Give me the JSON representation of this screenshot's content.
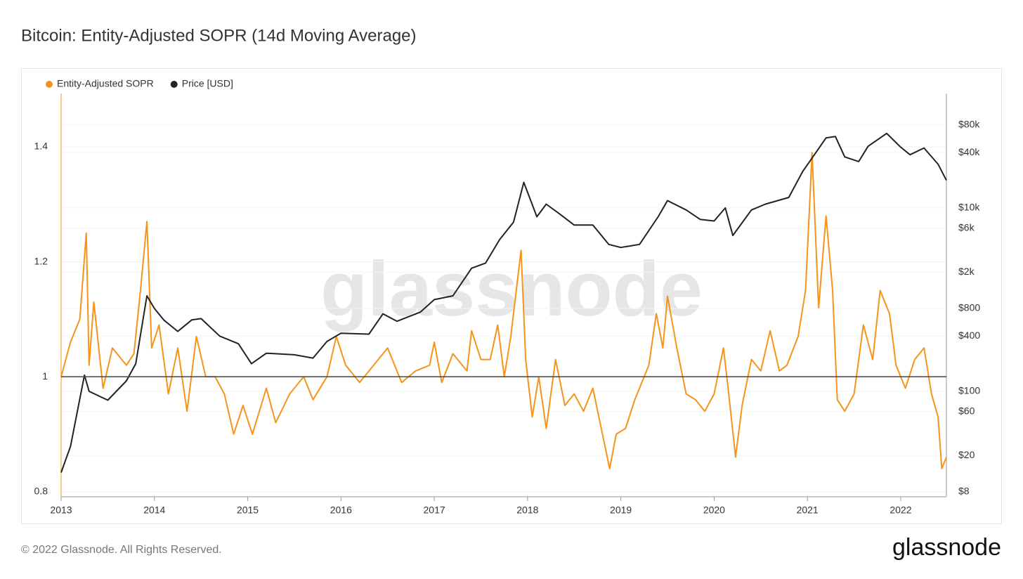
{
  "chart_data": {
    "type": "line",
    "title": "Bitcoin: Entity-Adjusted SOPR (14d Moving Average)",
    "watermark": "glassnode",
    "footer": "© 2022 Glassnode. All Rights Reserved.",
    "logo": "glassnode",
    "xlim": [
      2013,
      2022.49
    ],
    "xticks": [
      2013,
      2014,
      2015,
      2016,
      2017,
      2018,
      2019,
      2020,
      2021,
      2022
    ],
    "ylim": [
      0.791,
      1.493
    ],
    "yticks": [
      0.8,
      1,
      1.2,
      1.4
    ],
    "y2lim": [
      7.07,
      177000
    ],
    "y2scale": "log",
    "y2ticks": [
      {
        "value": 8,
        "label": "$8"
      },
      {
        "value": 20,
        "label": "$20"
      },
      {
        "value": 60,
        "label": "$60"
      },
      {
        "value": 100,
        "label": "$100"
      },
      {
        "value": 400,
        "label": "$400"
      },
      {
        "value": 800,
        "label": "$800"
      },
      {
        "value": 2000,
        "label": "$2k"
      },
      {
        "value": 6000,
        "label": "$6k"
      },
      {
        "value": 10000,
        "label": "$10k"
      },
      {
        "value": 40000,
        "label": "$40k"
      },
      {
        "value": 80000,
        "label": "$80k"
      }
    ],
    "reference_line": 1,
    "grid": true,
    "legend": "top-left",
    "series": [
      {
        "name": "Entity-Adjusted SOPR",
        "color": "#f7931a",
        "x": [
          2013.0,
          2013.1,
          2013.2,
          2013.27,
          2013.3,
          2013.35,
          2013.45,
          2013.55,
          2013.7,
          2013.78,
          2013.85,
          2013.92,
          2013.97,
          2014.05,
          2014.15,
          2014.25,
          2014.35,
          2014.45,
          2014.55,
          2014.65,
          2014.75,
          2014.85,
          2014.95,
          2015.05,
          2015.2,
          2015.3,
          2015.45,
          2015.6,
          2015.7,
          2015.85,
          2015.95,
          2016.05,
          2016.2,
          2016.35,
          2016.5,
          2016.65,
          2016.8,
          2016.95,
          2017.0,
          2017.08,
          2017.2,
          2017.35,
          2017.4,
          2017.5,
          2017.6,
          2017.68,
          2017.75,
          2017.82,
          2017.93,
          2017.98,
          2018.05,
          2018.12,
          2018.2,
          2018.3,
          2018.4,
          2018.5,
          2018.6,
          2018.7,
          2018.88,
          2018.95,
          2019.05,
          2019.15,
          2019.3,
          2019.38,
          2019.45,
          2019.5,
          2019.6,
          2019.7,
          2019.8,
          2019.9,
          2020.0,
          2020.1,
          2020.15,
          2020.23,
          2020.3,
          2020.4,
          2020.5,
          2020.6,
          2020.7,
          2020.78,
          2020.9,
          2020.98,
          2021.05,
          2021.12,
          2021.2,
          2021.27,
          2021.32,
          2021.4,
          2021.5,
          2021.6,
          2021.7,
          2021.78,
          2021.88,
          2021.95,
          2022.05,
          2022.15,
          2022.25,
          2022.33,
          2022.4,
          2022.44,
          2022.49
        ],
        "values": [
          1.0,
          1.06,
          1.1,
          1.25,
          1.02,
          1.13,
          0.98,
          1.05,
          1.02,
          1.04,
          1.15,
          1.27,
          1.05,
          1.09,
          0.97,
          1.05,
          0.94,
          1.07,
          1.0,
          1.0,
          0.97,
          0.9,
          0.95,
          0.9,
          0.98,
          0.92,
          0.97,
          1.0,
          0.96,
          1.0,
          1.07,
          1.02,
          0.99,
          1.02,
          1.05,
          0.99,
          1.01,
          1.02,
          1.06,
          0.99,
          1.04,
          1.01,
          1.08,
          1.03,
          1.03,
          1.09,
          1.0,
          1.07,
          1.22,
          1.03,
          0.93,
          1.0,
          0.91,
          1.03,
          0.95,
          0.97,
          0.94,
          0.98,
          0.84,
          0.9,
          0.91,
          0.96,
          1.02,
          1.11,
          1.05,
          1.14,
          1.05,
          0.97,
          0.96,
          0.94,
          0.97,
          1.05,
          0.98,
          0.86,
          0.95,
          1.03,
          1.01,
          1.08,
          1.01,
          1.02,
          1.07,
          1.15,
          1.39,
          1.12,
          1.28,
          1.15,
          0.96,
          0.94,
          0.97,
          1.09,
          1.03,
          1.15,
          1.11,
          1.02,
          0.98,
          1.03,
          1.05,
          0.97,
          0.93,
          0.84,
          0.86
        ]
      },
      {
        "name": "Price [USD]",
        "color": "#222222",
        "axis": "y2",
        "x": [
          2013.0,
          2013.1,
          2013.25,
          2013.3,
          2013.5,
          2013.7,
          2013.8,
          2013.92,
          2014.0,
          2014.1,
          2014.25,
          2014.4,
          2014.5,
          2014.7,
          2014.9,
          2015.04,
          2015.2,
          2015.5,
          2015.7,
          2015.85,
          2016.0,
          2016.3,
          2016.45,
          2016.6,
          2016.85,
          2017.0,
          2017.2,
          2017.4,
          2017.55,
          2017.7,
          2017.85,
          2017.96,
          2018.1,
          2018.2,
          2018.35,
          2018.5,
          2018.7,
          2018.87,
          2019.0,
          2019.2,
          2019.4,
          2019.5,
          2019.7,
          2019.85,
          2020.0,
          2020.12,
          2020.2,
          2020.4,
          2020.55,
          2020.8,
          2020.95,
          2021.05,
          2021.2,
          2021.3,
          2021.4,
          2021.55,
          2021.65,
          2021.85,
          2022.0,
          2022.1,
          2022.25,
          2022.4,
          2022.49
        ],
        "values": [
          13,
          25,
          150,
          100,
          80,
          130,
          200,
          1100,
          800,
          600,
          450,
          600,
          620,
          400,
          330,
          200,
          260,
          250,
          230,
          350,
          430,
          420,
          700,
          580,
          730,
          1000,
          1100,
          2200,
          2500,
          4500,
          7000,
          19000,
          8000,
          11000,
          8500,
          6500,
          6500,
          4000,
          3700,
          4000,
          8000,
          12000,
          9500,
          7500,
          7200,
          10000,
          5000,
          9500,
          11000,
          13000,
          25000,
          35000,
          58000,
          60000,
          36000,
          32000,
          47000,
          65000,
          46000,
          38000,
          45000,
          30000,
          20000
        ]
      }
    ]
  }
}
